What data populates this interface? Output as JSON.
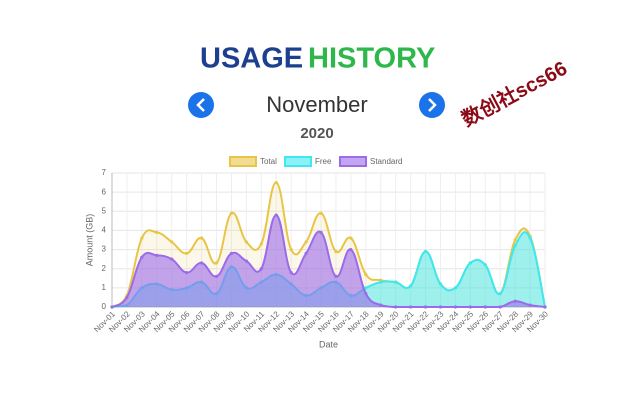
{
  "header": {
    "title_first": "USAGE",
    "title_second": "HISTORY",
    "month": "November",
    "year": "2020"
  },
  "watermark": "数创社scs66",
  "chart_data": {
    "type": "line",
    "area": true,
    "x_label": "Date",
    "y_label": "Amount (GB)",
    "categories": [
      "Nov-01",
      "Nov-02",
      "Nov-03",
      "Nov-04",
      "Nov-05",
      "Nov-06",
      "Nov-07",
      "Nov-08",
      "Nov-09",
      "Nov-10",
      "Nov-11",
      "Nov-12",
      "Nov-13",
      "Nov-14",
      "Nov-15",
      "Nov-16",
      "Nov-17",
      "Nov-18",
      "Nov-19",
      "Nov-20",
      "Nov-21",
      "Nov-22",
      "Nov-23",
      "Nov-24",
      "Nov-25",
      "Nov-26",
      "Nov-27",
      "Nov-28",
      "Nov-29",
      "Nov-30"
    ],
    "series": [
      {
        "name": "Total",
        "color": "#e8c547",
        "values": [
          0,
          0.6,
          3.6,
          3.9,
          3.4,
          2.8,
          3.6,
          2.3,
          4.9,
          3.4,
          3.3,
          6.5,
          3.0,
          3.4,
          4.9,
          2.9,
          3.6,
          1.7,
          1.4,
          1.3,
          1.1,
          2.9,
          1.2,
          1.0,
          2.3,
          2.2,
          0.7,
          3.5,
          3.7,
          0
        ]
      },
      {
        "name": "Free",
        "color": "#3de8f0",
        "values": [
          0,
          0.1,
          1.0,
          1.2,
          0.9,
          1.0,
          1.3,
          0.7,
          2.1,
          1.0,
          1.3,
          1.7,
          1.2,
          0.6,
          1.0,
          1.3,
          0.6,
          1.0,
          1.3,
          1.3,
          1.1,
          2.9,
          1.2,
          1.0,
          2.3,
          2.2,
          0.7,
          3.2,
          3.6,
          0
        ]
      },
      {
        "name": "Standard",
        "color": "#9b6bea",
        "values": [
          0,
          0.5,
          2.6,
          2.7,
          2.5,
          1.8,
          2.3,
          1.6,
          2.8,
          2.4,
          2.0,
          4.8,
          1.8,
          2.8,
          3.9,
          1.6,
          3.0,
          0.7,
          0.1,
          0,
          0,
          0,
          0,
          0,
          0,
          0,
          0,
          0.3,
          0.1,
          0
        ]
      }
    ],
    "ylim": [
      0,
      7
    ],
    "yticks": [
      0,
      1,
      2,
      3,
      4,
      5,
      6,
      7
    ],
    "grid": true,
    "legend": "top"
  }
}
